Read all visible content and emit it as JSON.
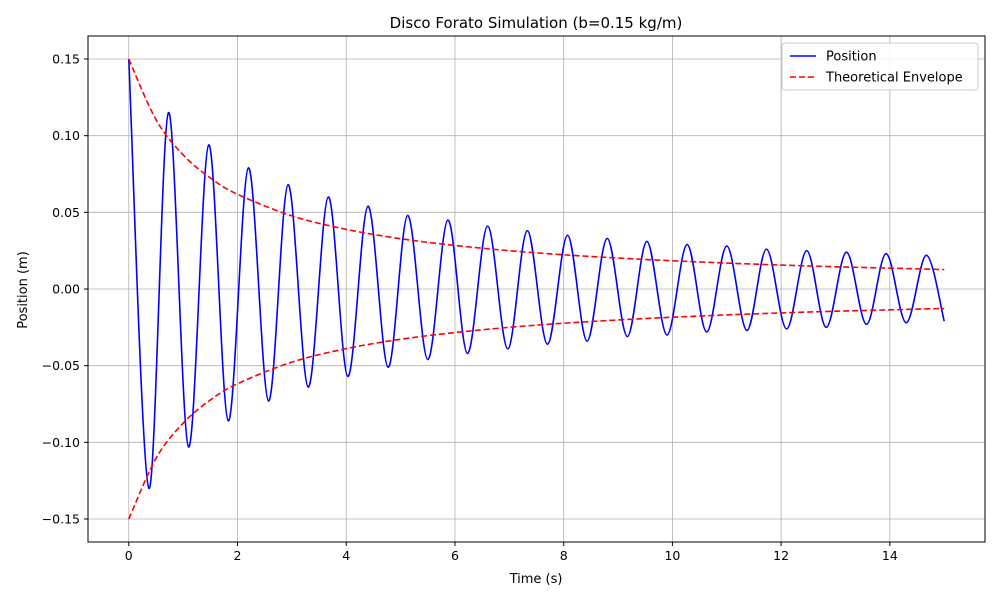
{
  "chart_data": {
    "type": "line",
    "title": "Disco Forato Simulation (b=0.15 kg/m)",
    "xlabel": "Time (s)",
    "ylabel": "Position (m)",
    "xlim": [
      -0.75,
      15.75
    ],
    "ylim": [
      -0.165,
      0.165
    ],
    "xticks": [
      0,
      2,
      4,
      6,
      8,
      10,
      12,
      14
    ],
    "xtick_labels": [
      "0",
      "2",
      "4",
      "6",
      "8",
      "10",
      "12",
      "14"
    ],
    "yticks": [
      -0.15,
      -0.1,
      -0.05,
      0.0,
      0.05,
      0.1,
      0.15
    ],
    "ytick_labels": [
      "−0.15",
      "−0.10",
      "−0.05",
      "0.00",
      "0.05",
      "0.10",
      "0.15"
    ],
    "grid": true,
    "legend_position": "top-right",
    "series": [
      {
        "name": "Position",
        "color": "#0000ff",
        "style": "solid",
        "x": [
          0,
          0.37,
          0.73,
          1.1,
          1.47,
          1.83,
          2.2,
          2.57,
          2.93,
          3.3,
          3.67,
          4.03,
          4.4,
          4.77,
          5.13,
          5.5,
          5.87,
          6.23,
          6.6,
          6.97,
          7.33,
          7.7,
          8.07,
          8.43,
          8.8,
          9.17,
          9.53,
          9.9,
          10.27,
          10.63,
          11.0,
          11.37,
          11.73,
          12.1,
          12.47,
          12.83,
          13.2,
          13.57,
          13.93,
          14.3,
          14.67,
          15.0
        ],
        "y": [
          0.15,
          -0.13,
          0.115,
          -0.103,
          0.094,
          -0.086,
          0.079,
          -0.073,
          0.068,
          -0.064,
          0.06,
          -0.057,
          0.054,
          -0.051,
          0.048,
          -0.046,
          0.045,
          -0.042,
          0.041,
          -0.039,
          0.038,
          -0.036,
          0.035,
          -0.034,
          0.033,
          -0.031,
          0.031,
          -0.03,
          0.029,
          -0.028,
          0.028,
          -0.027,
          0.026,
          -0.026,
          0.025,
          -0.025,
          0.024,
          -0.023,
          0.023,
          -0.022,
          0.022,
          -0.021
        ]
      },
      {
        "name": "Theoretical Envelope",
        "color": "#ff0000",
        "style": "dashed",
        "x": [
          0,
          0.5,
          1,
          1.5,
          2,
          3,
          4,
          5,
          6,
          7,
          8,
          9,
          10,
          11,
          12,
          13,
          14,
          15
        ],
        "y": [
          0.15,
          0.1105,
          0.0875,
          0.0724,
          0.0618,
          0.0477,
          0.0389,
          0.0328,
          0.0284,
          0.025,
          0.0223,
          0.0202,
          0.0184,
          0.0169,
          0.0156,
          0.0145,
          0.0136,
          0.0127
        ]
      },
      {
        "name": "",
        "color": "#ff0000",
        "style": "dashed",
        "x": [
          0,
          0.5,
          1,
          1.5,
          2,
          3,
          4,
          5,
          6,
          7,
          8,
          9,
          10,
          11,
          12,
          13,
          14,
          15
        ],
        "y": [
          -0.15,
          -0.1105,
          -0.0875,
          -0.0724,
          -0.0618,
          -0.0477,
          -0.0389,
          -0.0328,
          -0.0284,
          -0.025,
          -0.0223,
          -0.0202,
          -0.0184,
          -0.0169,
          -0.0156,
          -0.0145,
          -0.0136,
          -0.0127
        ]
      }
    ]
  }
}
